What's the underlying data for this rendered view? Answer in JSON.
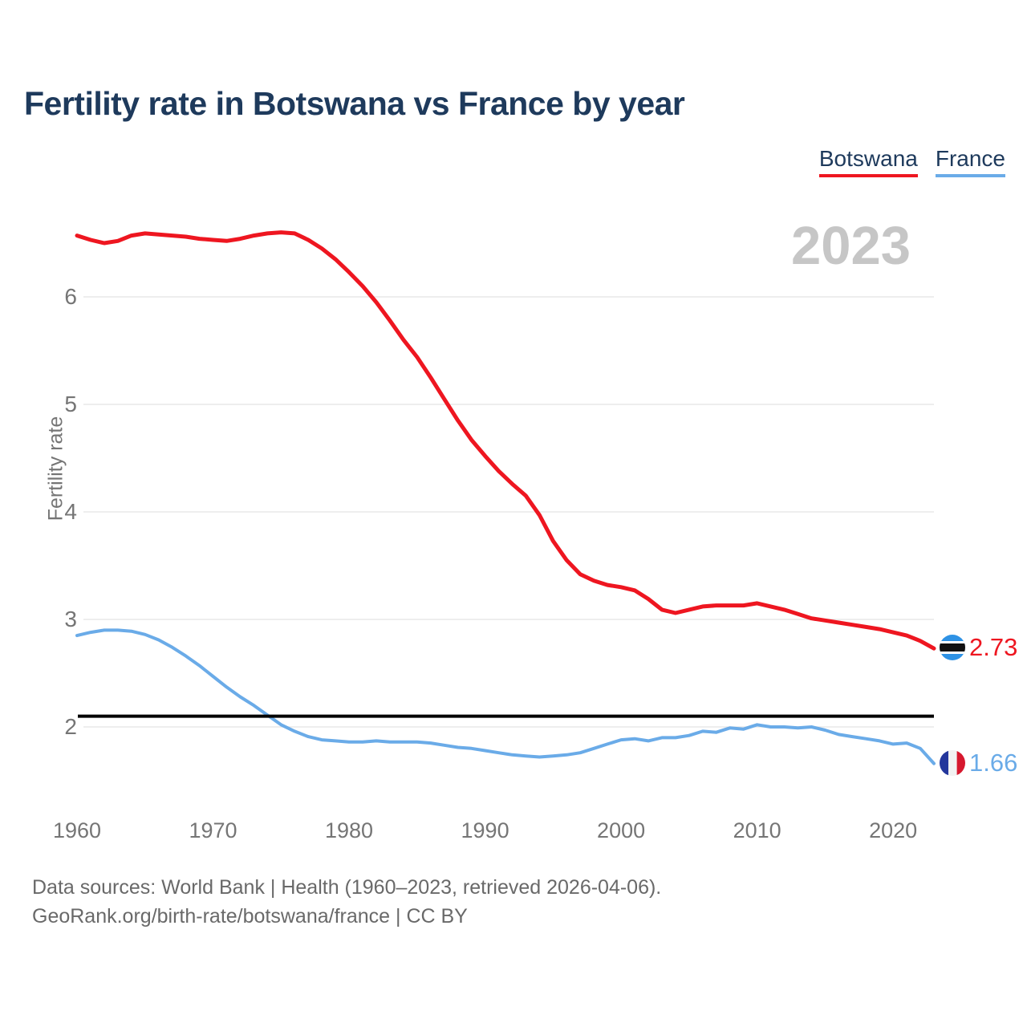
{
  "header": {
    "title": "Fertility rate in Botswana vs France by year"
  },
  "legend": {
    "items": [
      {
        "label": "Botswana",
        "color": "#ee1620"
      },
      {
        "label": "France",
        "color": "#6aabe8"
      }
    ]
  },
  "watermark": {
    "year": "2023"
  },
  "y_axis": {
    "title": "Fertility rate"
  },
  "end_labels": {
    "botswana": "2.73",
    "france": "1.66"
  },
  "icons": {
    "botswana_flag": {
      "name": "botswana-flag-icon",
      "colors": [
        "#2e92e5",
        "#ffffff",
        "#111111"
      ]
    },
    "france_flag": {
      "name": "france-flag-icon",
      "colors": [
        "#24379c",
        "#f2f2f2",
        "#d6182e"
      ]
    }
  },
  "footer": {
    "line1": "Data sources: World Bank | Health (1960–2023, retrieved 2026-04-06).",
    "line2": "GeoRank.org/birth-rate/botswana/france | CC BY"
  },
  "chart_data": {
    "type": "line",
    "title": "Fertility rate in Botswana vs France by year",
    "xlabel": "",
    "ylabel": "Fertility rate",
    "x_start": 1960,
    "x_end": 2023,
    "ylim": [
      1.55,
      6.75
    ],
    "y_ticks": [
      2,
      3,
      4,
      5,
      6
    ],
    "x_ticks": [
      1960,
      1970,
      1980,
      1990,
      2000,
      2010,
      2020
    ],
    "grid": "horizontal",
    "legend_position": "top-right",
    "gridline_color": "#e9e9e9",
    "reference_line": {
      "value": 2.1,
      "color": "#000000"
    },
    "years": [
      1960,
      1961,
      1962,
      1963,
      1964,
      1965,
      1966,
      1967,
      1968,
      1969,
      1970,
      1971,
      1972,
      1973,
      1974,
      1975,
      1976,
      1977,
      1978,
      1979,
      1980,
      1981,
      1982,
      1983,
      1984,
      1985,
      1986,
      1987,
      1988,
      1989,
      1990,
      1991,
      1992,
      1993,
      1994,
      1995,
      1996,
      1997,
      1998,
      1999,
      2000,
      2001,
      2002,
      2003,
      2004,
      2005,
      2006,
      2007,
      2008,
      2009,
      2010,
      2011,
      2012,
      2013,
      2014,
      2015,
      2016,
      2017,
      2018,
      2019,
      2020,
      2021,
      2022,
      2023
    ],
    "series": [
      {
        "name": "Botswana",
        "color": "#ee1620",
        "end_value": 2.73,
        "values": [
          6.57,
          6.53,
          6.5,
          6.52,
          6.57,
          6.59,
          6.58,
          6.57,
          6.56,
          6.54,
          6.53,
          6.52,
          6.54,
          6.57,
          6.59,
          6.6,
          6.59,
          6.53,
          6.45,
          6.35,
          6.23,
          6.1,
          5.95,
          5.78,
          5.6,
          5.44,
          5.25,
          5.05,
          4.85,
          4.67,
          4.52,
          4.38,
          4.26,
          4.15,
          3.97,
          3.73,
          3.55,
          3.42,
          3.36,
          3.32,
          3.3,
          3.27,
          3.19,
          3.09,
          3.06,
          3.09,
          3.12,
          3.13,
          3.13,
          3.13,
          3.15,
          3.12,
          3.09,
          3.05,
          3.01,
          2.99,
          2.97,
          2.95,
          2.93,
          2.91,
          2.88,
          2.85,
          2.8,
          2.73
        ]
      },
      {
        "name": "France",
        "color": "#6aabe8",
        "end_value": 1.66,
        "values": [
          2.85,
          2.88,
          2.9,
          2.9,
          2.89,
          2.86,
          2.81,
          2.74,
          2.66,
          2.57,
          2.47,
          2.37,
          2.28,
          2.2,
          2.11,
          2.02,
          1.96,
          1.91,
          1.88,
          1.87,
          1.86,
          1.86,
          1.87,
          1.86,
          1.86,
          1.86,
          1.85,
          1.83,
          1.81,
          1.8,
          1.78,
          1.76,
          1.74,
          1.73,
          1.72,
          1.73,
          1.74,
          1.76,
          1.8,
          1.84,
          1.88,
          1.89,
          1.87,
          1.9,
          1.9,
          1.92,
          1.96,
          1.95,
          1.99,
          1.98,
          2.02,
          2.0,
          2.0,
          1.99,
          2.0,
          1.97,
          1.93,
          1.91,
          1.89,
          1.87,
          1.84,
          1.85,
          1.8,
          1.66
        ]
      }
    ]
  }
}
